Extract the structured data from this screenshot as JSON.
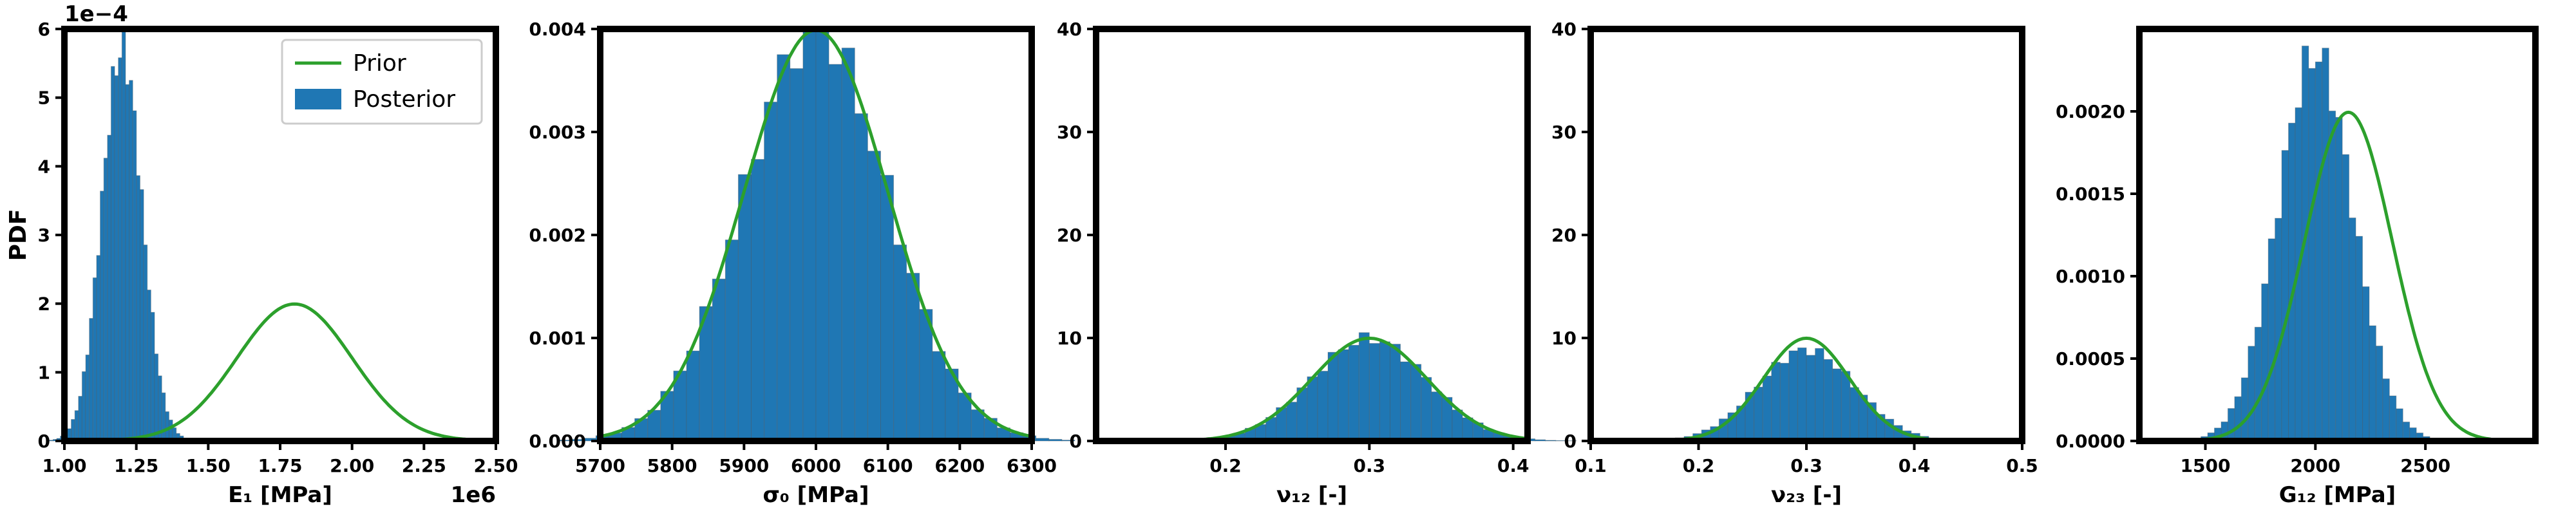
{
  "figure": {
    "colors": {
      "prior": "#2ca02c",
      "posterior": "#1f77b4",
      "bar_edge": "#555555",
      "frame": "#000000"
    },
    "legend": {
      "prior": "Prior",
      "posterior": "Posterior",
      "location": "upper-right of panel 1"
    },
    "ylabel": "PDF"
  },
  "chart_data": [
    {
      "type": "histogram",
      "xlabel": "E₁ [MPa]",
      "ylabel": "PDF",
      "offset_label_top": "1e−4",
      "offset_label_bottom": "1e6",
      "xlim": [
        1.0,
        2.5
      ],
      "ylim": [
        0,
        6
      ],
      "xticks": [
        1.0,
        1.25,
        1.5,
        1.75,
        2.0,
        2.25,
        2.5
      ],
      "xtick_labels": [
        "1.00",
        "1.25",
        "1.50",
        "1.75",
        "2.00",
        "2.25",
        "2.50"
      ],
      "yticks": [
        0,
        1,
        2,
        3,
        4,
        5,
        6
      ],
      "ytick_labels": [
        "0",
        "1",
        "2",
        "3",
        "4",
        "5",
        "6"
      ],
      "prior": {
        "mean": 1.8,
        "sd": 0.2
      },
      "posterior": {
        "mean": 1.2,
        "sd": 0.07
      }
    },
    {
      "type": "histogram",
      "xlabel": "σ₀ [MPa]",
      "xlim": [
        5700,
        6300
      ],
      "ylim": [
        0,
        0.004
      ],
      "xticks": [
        5700,
        5800,
        5900,
        6000,
        6100,
        6200,
        6300
      ],
      "xtick_labels": [
        "5700",
        "5800",
        "5900",
        "6000",
        "6100",
        "6200",
        "6300"
      ],
      "yticks": [
        0,
        0.001,
        0.002,
        0.003,
        0.004
      ],
      "ytick_labels": [
        "0.000",
        "0.001",
        "0.002",
        "0.003",
        "0.004"
      ],
      "prior": {
        "mean": 6000,
        "sd": 100
      },
      "posterior": {
        "mean": 6000,
        "sd": 100
      }
    },
    {
      "type": "histogram",
      "xlabel": "ν₁₂ [-]",
      "xlim": [
        0.11,
        0.41
      ],
      "ylim": [
        0,
        40
      ],
      "xticks": [
        0.2,
        0.3,
        0.4
      ],
      "xtick_labels": [
        "0.2",
        "0.3",
        "0.4"
      ],
      "yticks": [
        0,
        10,
        20,
        30,
        40
      ],
      "ytick_labels": [
        "0",
        "10",
        "20",
        "30",
        "40"
      ],
      "prior": {
        "mean": 0.3,
        "sd": 0.04
      },
      "posterior": {
        "mean": 0.3,
        "sd": 0.04
      }
    },
    {
      "type": "histogram",
      "xlabel": "ν₂₃ [-]",
      "xlim": [
        0.1,
        0.5
      ],
      "ylim": [
        0,
        40
      ],
      "xticks": [
        0.1,
        0.2,
        0.3,
        0.4,
        0.5
      ],
      "xtick_labels": [
        "0.1",
        "0.2",
        "0.3",
        "0.4",
        "0.5"
      ],
      "yticks": [
        0,
        10,
        20,
        30,
        40
      ],
      "ytick_labels": [
        "0",
        "10",
        "20",
        "30",
        "40"
      ],
      "prior": {
        "mean": 0.3,
        "sd": 0.04
      },
      "posterior": {
        "mean": 0.3,
        "sd": 0.045
      }
    },
    {
      "type": "histogram",
      "xlabel": "G₁₂ [MPa]",
      "xlim": [
        1200,
        3000
      ],
      "ylim": [
        0,
        0.0025
      ],
      "xticks": [
        1500,
        2000,
        2500
      ],
      "xtick_labels": [
        "1500",
        "2000",
        "2500"
      ],
      "yticks": [
        0,
        0.0005,
        0.001,
        0.0015,
        0.002
      ],
      "ytick_labels": [
        "0.0000",
        "0.0005",
        "0.0010",
        "0.0015",
        "0.0020"
      ],
      "prior": {
        "mean": 2150,
        "sd": 200
      },
      "posterior": {
        "mean": 2000,
        "sd": 170
      }
    }
  ]
}
